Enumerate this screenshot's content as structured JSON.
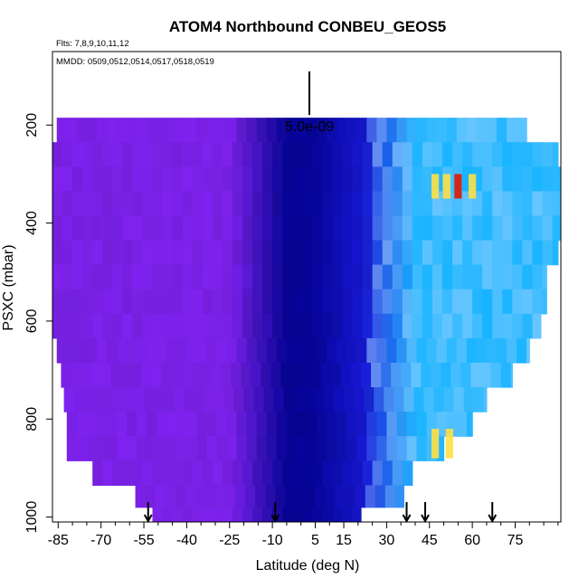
{
  "chart_data": {
    "type": "heatmap",
    "title": "ATOM4 Northbound CONBEU_GEOS5",
    "flights_label": "Flts: 7,8,9,10,11,12",
    "dates_label": "MMDD: 0509,0512,0514,0517,0518,0519",
    "xlabel": "Latitude (deg N)",
    "ylabel": "PSXC (mbar)",
    "scale_label": "5.0e-09",
    "xlim": [
      -87,
      91
    ],
    "ylim": [
      1010,
      50
    ],
    "y_reversed": true,
    "x_ticks": [
      -85,
      -70,
      -55,
      -40,
      -25,
      -10,
      5,
      15,
      30,
      45,
      60,
      75
    ],
    "y_ticks": [
      200,
      400,
      600,
      800,
      1000
    ],
    "colors": {
      "purple": "#7f22f0",
      "navy": "#06049a",
      "blue": "#1818d8",
      "sky": "#18b4ff",
      "light": "#a8d4ff",
      "yellow": "#ffe044",
      "red": "#e01800"
    },
    "profile_levels": [
      210,
      260,
      310,
      360,
      410,
      460,
      510,
      560,
      610,
      660,
      710,
      760,
      810,
      860,
      910,
      960,
      1000
    ],
    "profile_extent": [
      {
        "p": 210,
        "lat_min": -85.5,
        "lat_max": 79
      },
      {
        "p": 260,
        "lat_min": -87,
        "lat_max": 90
      },
      {
        "p": 310,
        "lat_min": -87,
        "lat_max": 91
      },
      {
        "p": 360,
        "lat_min": -87,
        "lat_max": 91
      },
      {
        "p": 410,
        "lat_min": -87,
        "lat_max": 91
      },
      {
        "p": 460,
        "lat_min": -87,
        "lat_max": 90
      },
      {
        "p": 510,
        "lat_min": -87,
        "lat_max": 86
      },
      {
        "p": 560,
        "lat_min": -87,
        "lat_max": 86
      },
      {
        "p": 610,
        "lat_min": -87,
        "lat_max": 84
      },
      {
        "p": 660,
        "lat_min": -85.5,
        "lat_max": 80
      },
      {
        "p": 710,
        "lat_min": -84,
        "lat_max": 74
      },
      {
        "p": 760,
        "lat_min": -83,
        "lat_max": 65
      },
      {
        "p": 810,
        "lat_min": -82,
        "lat_max": 60
      },
      {
        "p": 860,
        "lat_min": -82,
        "lat_max": 50
      },
      {
        "p": 910,
        "lat_min": -73,
        "lat_max": 39
      },
      {
        "p": 960,
        "lat_min": -58,
        "lat_max": 36
      },
      {
        "p": 1000,
        "lat_min": -52,
        "lat_max": 21
      }
    ],
    "colour_profile": [
      {
        "lat": -87,
        "color": "purple"
      },
      {
        "lat": -25,
        "color": "purple"
      },
      {
        "lat": -5,
        "color": "navy"
      },
      {
        "lat": 4,
        "color": "navy"
      },
      {
        "lat": 22,
        "color": "blue"
      },
      {
        "lat": 40,
        "color": "sky"
      },
      {
        "lat": 91,
        "color": "sky"
      }
    ],
    "upper_band": {
      "p_min": 300,
      "p_max": 350,
      "hot_lats": [
        47,
        51,
        55,
        60
      ],
      "peak_lat": 55
    },
    "lower_band": {
      "p_min": 820,
      "p_max": 880,
      "hot_lats": [
        47,
        52
      ]
    },
    "flight_markers_lat": [
      -53.5,
      -9,
      37,
      43.5,
      67
    ]
  }
}
